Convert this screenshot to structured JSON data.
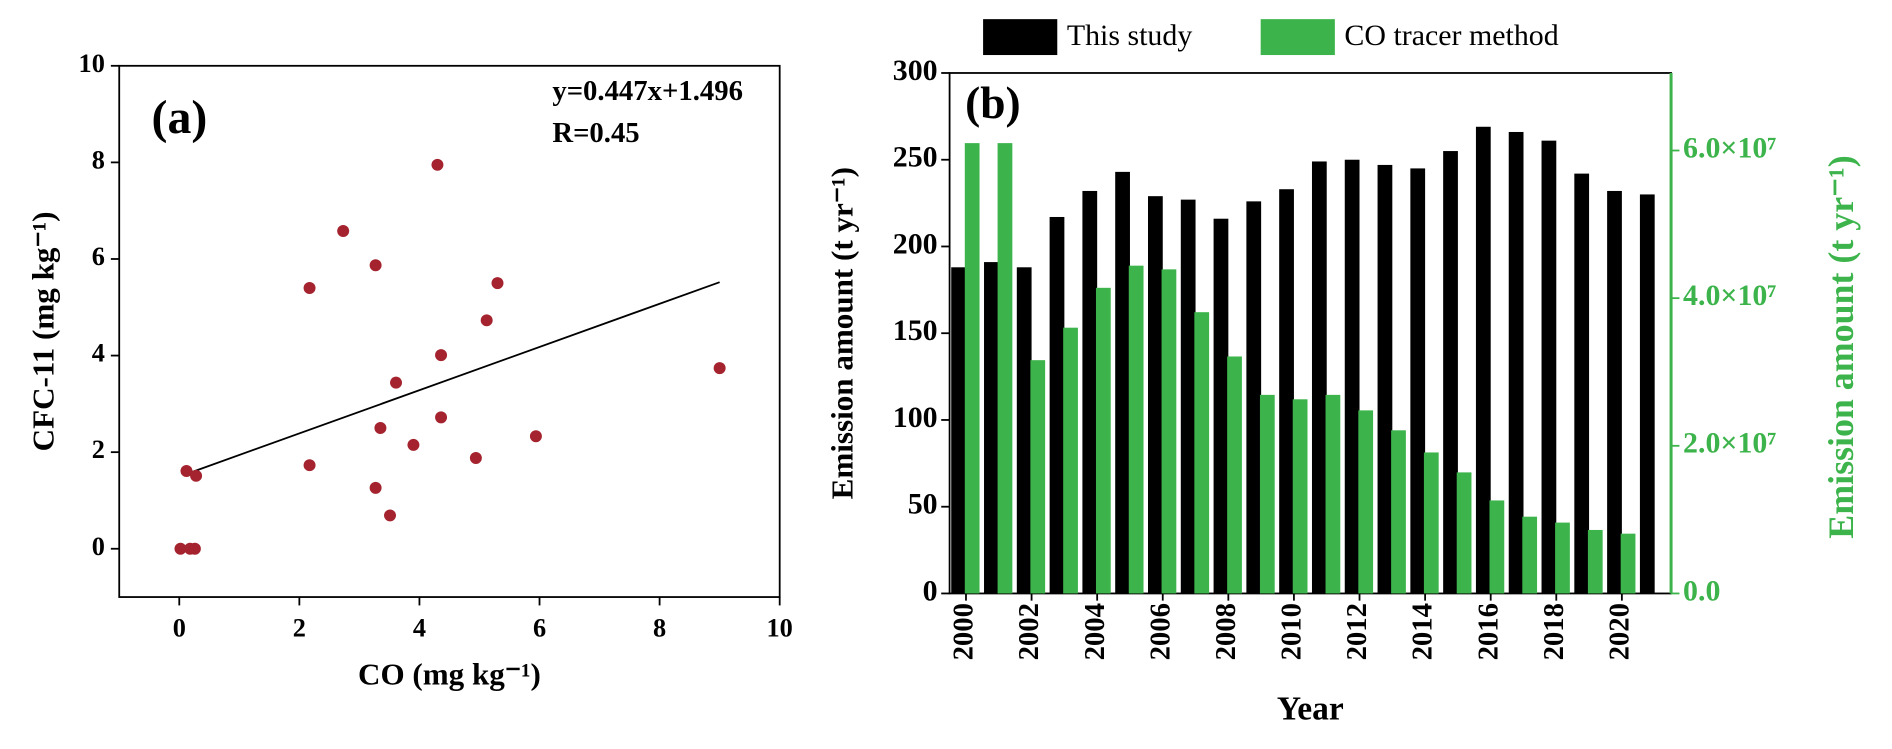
{
  "chart_data": [
    {
      "type": "scatter",
      "label": "(a)",
      "annotations": [
        "y=0.447x+1.496",
        "R=0.45"
      ],
      "x_label": "CO (mg kg⁻¹)",
      "y_label": "CFC-11 (mg kg⁻¹)",
      "x": [
        0.02,
        0.18,
        0.26,
        0.12,
        0.28,
        2.17,
        2.17,
        2.73,
        3.27,
        3.27,
        3.35,
        3.51,
        3.61,
        3.9,
        4.3,
        4.36,
        4.36,
        4.94,
        5.12,
        5.3,
        5.94,
        9.0
      ],
      "y": [
        0,
        0,
        0,
        1.61,
        1.51,
        5.4,
        1.73,
        6.58,
        5.87,
        1.26,
        2.5,
        0.69,
        3.44,
        2.15,
        7.95,
        4.01,
        2.72,
        1.88,
        4.73,
        5.5,
        2.33,
        3.74
      ],
      "color": "#a4232e",
      "fit_line": {
        "x": [
          0.08,
          9.0
        ],
        "y": [
          1.53,
          5.52
        ],
        "color": "#000000"
      },
      "xlim": [
        -1,
        10
      ],
      "ylim": [
        -1,
        10
      ],
      "xticks": [
        0,
        2,
        4,
        6,
        8,
        10
      ],
      "yticks": [
        0,
        2,
        4,
        6,
        8,
        10
      ]
    },
    {
      "type": "bar",
      "label": "(b)",
      "x_label": "Year",
      "y_label": "Emission amount (t yr⁻¹)",
      "y2_label": "Emission amount (t yr⁻¹)",
      "y2color": "#3cb44b",
      "categories": [
        "2000",
        null,
        "2002",
        null,
        "2004",
        null,
        "2006",
        null,
        "2008",
        null,
        "2010",
        null,
        "2012",
        null,
        "2014",
        null,
        "2016",
        null,
        "2018",
        null,
        "2020",
        null
      ],
      "series": [
        {
          "name": "This study",
          "color": "#000000",
          "values": [
            188,
            191,
            188,
            217,
            232,
            243,
            229,
            227,
            216,
            226,
            233,
            249,
            250,
            247,
            245,
            255,
            269,
            266,
            261,
            242,
            232,
            230
          ]
        },
        {
          "name": "CO tracer method",
          "color": "#3cb44b",
          "axis": "y2",
          "values": [
            61000000,
            61000000,
            31600000,
            36000000,
            41400000,
            44400000,
            43900000,
            38100000,
            32100000,
            26900000,
            26300000,
            26900000,
            24800000,
            22100000,
            19100000,
            16400000,
            12600000,
            10400000,
            9600000,
            8600000,
            8100000,
            null
          ]
        }
      ],
      "ylim": [
        0,
        300
      ],
      "yticks": [
        0,
        50,
        100,
        150,
        200,
        250,
        300
      ],
      "y2lim": [
        0,
        70500000
      ],
      "y2ticks": [
        {
          "value": 0,
          "label": "0.0"
        },
        {
          "value": 20000000,
          "label": "2.0×10⁷"
        },
        {
          "value": 40000000,
          "label": "4.0×10⁷"
        },
        {
          "value": 60000000,
          "label": "6.0×10⁷"
        }
      ]
    }
  ]
}
